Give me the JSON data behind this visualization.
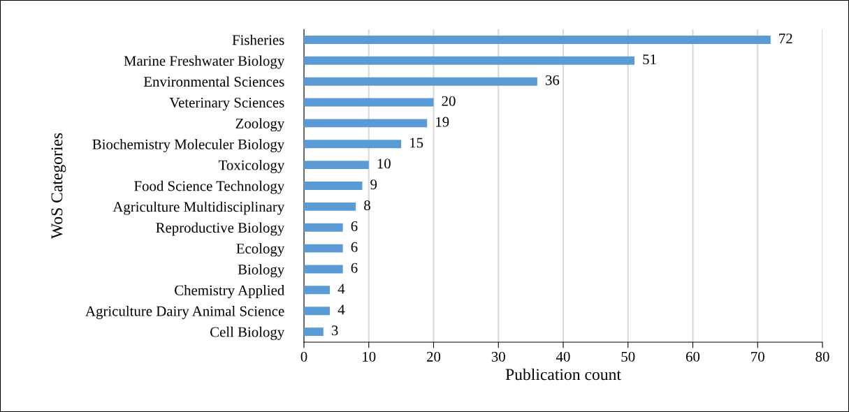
{
  "chart_data": {
    "type": "bar",
    "orientation": "horizontal",
    "xlabel": "Publication count",
    "ylabel": "WoS Categories",
    "categories": [
      "Fisheries",
      "Marine Freshwater Biology",
      "Environmental Sciences",
      "Veterinary Sciences",
      "Zoology",
      "Biochemistry Moleculer Biology",
      "Toxicology",
      "Food Science Technology",
      "Agriculture Multidisciplinary",
      "Reproductive Biology",
      "Ecology",
      "Biology",
      "Chemistry Applied",
      "Agriculture Dairy Animal Science",
      "Cell Biology"
    ],
    "values": [
      72,
      51,
      36,
      20,
      19,
      15,
      10,
      9,
      8,
      6,
      6,
      6,
      4,
      4,
      3
    ],
    "color": "#5b9bd5",
    "xlim": [
      0,
      80
    ],
    "xticks": [
      0,
      10,
      20,
      30,
      40,
      50,
      60,
      70,
      80
    ],
    "grid": "x",
    "data_labels": true
  }
}
